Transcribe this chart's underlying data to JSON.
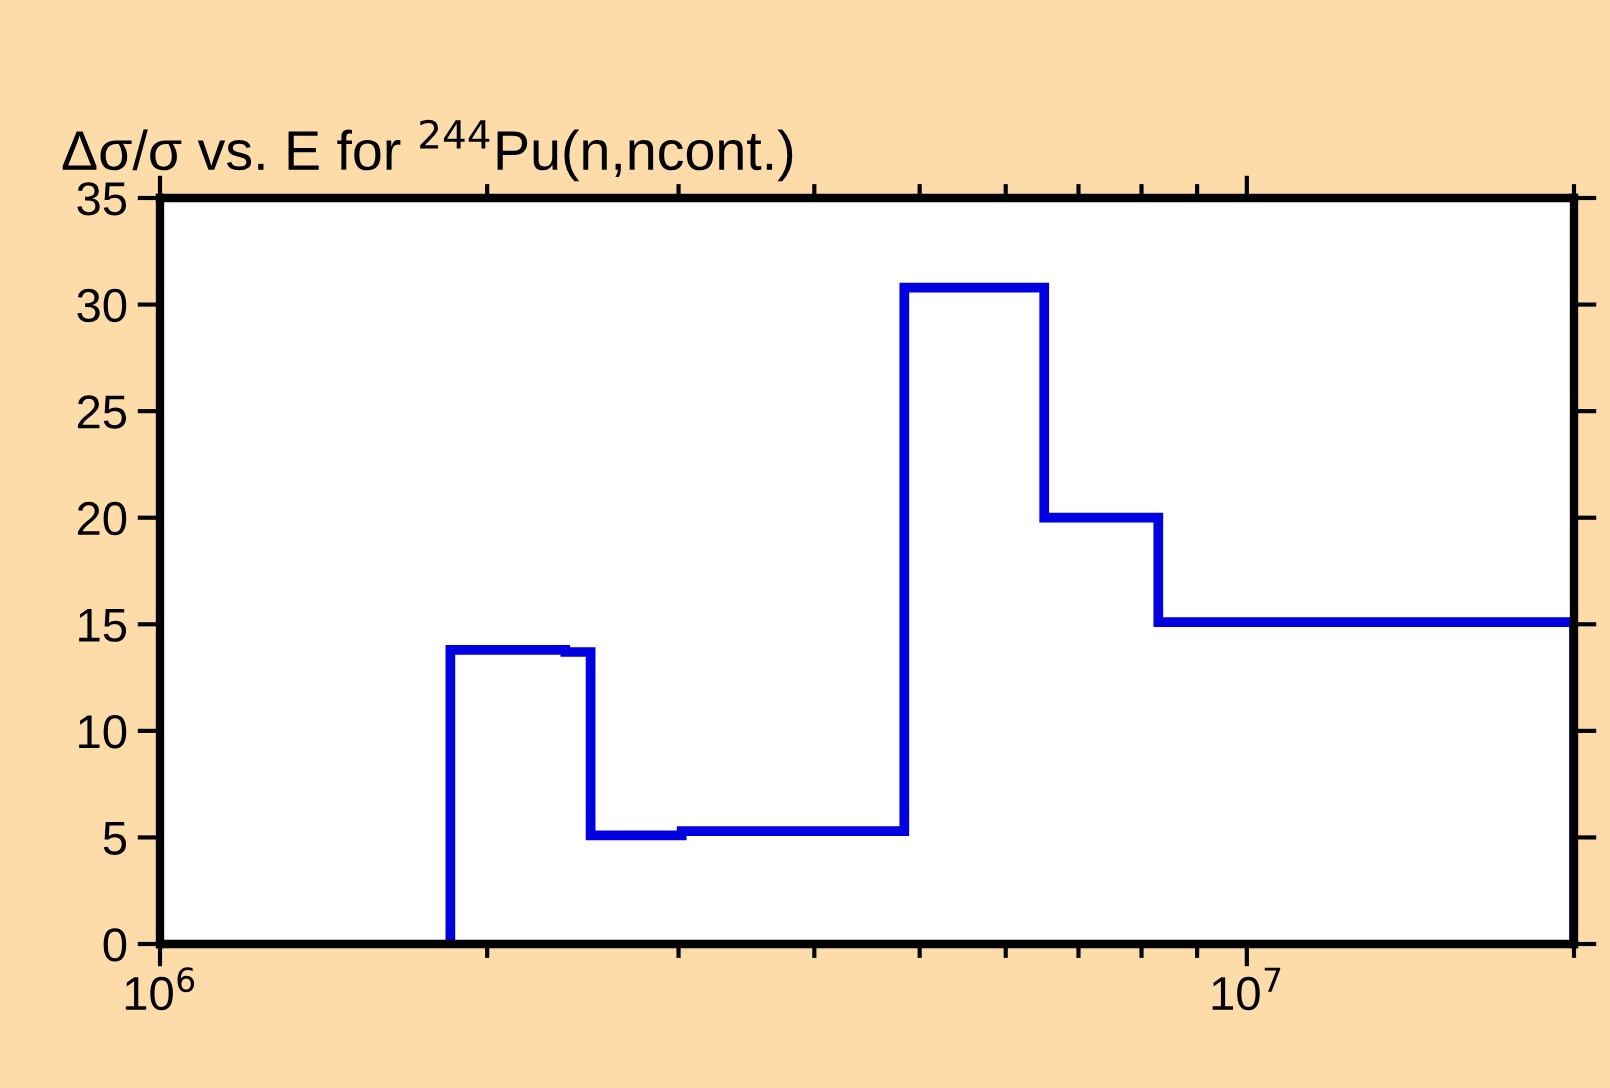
{
  "chart_data": {
    "type": "histogram",
    "title": "Δσ/σ vs. E for $^{244}$Pu(n,ncont.)",
    "bins": [
      1850000,
      2360000,
      2490000,
      3020000,
      4840000,
      6510000,
      8290000,
      20000000
    ],
    "values": [
      13.8,
      13.7,
      5.1,
      5.3,
      30.8,
      20.0,
      15.1
    ],
    "color": "#0000e0",
    "log": "x",
    "xlim": [
      1000000,
      20000000
    ],
    "xticks": [
      {
        "value": 1000000,
        "label": "10$^{6}$"
      },
      {
        "value": 10000000,
        "label": "10$^{7}$"
      }
    ],
    "ylim": [
      0,
      35
    ],
    "yticks": [
      0,
      5,
      10,
      15,
      20,
      25,
      30,
      35
    ],
    "grid": false
  }
}
